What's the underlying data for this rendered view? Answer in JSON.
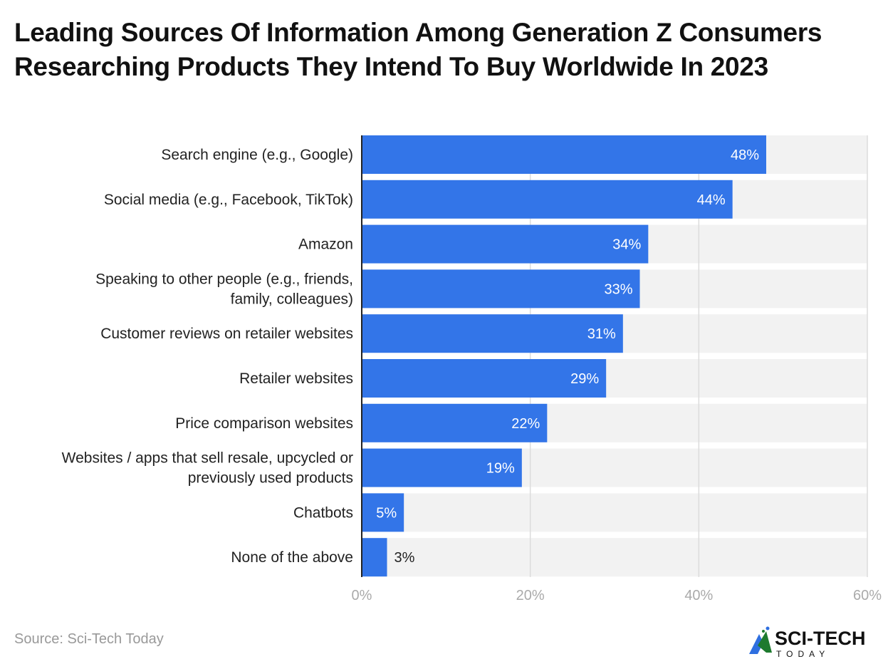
{
  "chart_data": {
    "type": "bar",
    "orientation": "horizontal",
    "title": "Leading Sources Of Information Among Generation Z Consumers Researching Products They Intend To Buy Worldwide In 2023",
    "categories": [
      [
        "Search engine (e.g., Google)"
      ],
      [
        "Social media (e.g., Facebook, TikTok)"
      ],
      [
        "Amazon"
      ],
      [
        "Speaking to other people (e.g., friends,",
        "family, colleagues)"
      ],
      [
        "Customer reviews on retailer websites"
      ],
      [
        "Retailer websites"
      ],
      [
        "Price comparison websites"
      ],
      [
        "Websites / apps that sell resale, upcycled or",
        "previously used products"
      ],
      [
        "Chatbots"
      ],
      [
        "None of the above"
      ]
    ],
    "values": [
      48,
      44,
      34,
      33,
      31,
      29,
      22,
      19,
      5,
      3
    ],
    "data_labels": [
      "48%",
      "44%",
      "34%",
      "33%",
      "31%",
      "29%",
      "22%",
      "19%",
      "5%",
      "3%"
    ],
    "xlim": [
      0,
      60
    ],
    "x_ticks": [
      "0%",
      "20%",
      "40%",
      "60%"
    ],
    "x_tick_values": [
      0,
      20,
      40,
      60
    ],
    "grid": true,
    "bar_color": "#3375E8",
    "track_color": "#F2F2F2"
  },
  "footer": {
    "source": "Source: Sci-Tech Today",
    "logo_text": "SCI-TECH TODAY"
  }
}
